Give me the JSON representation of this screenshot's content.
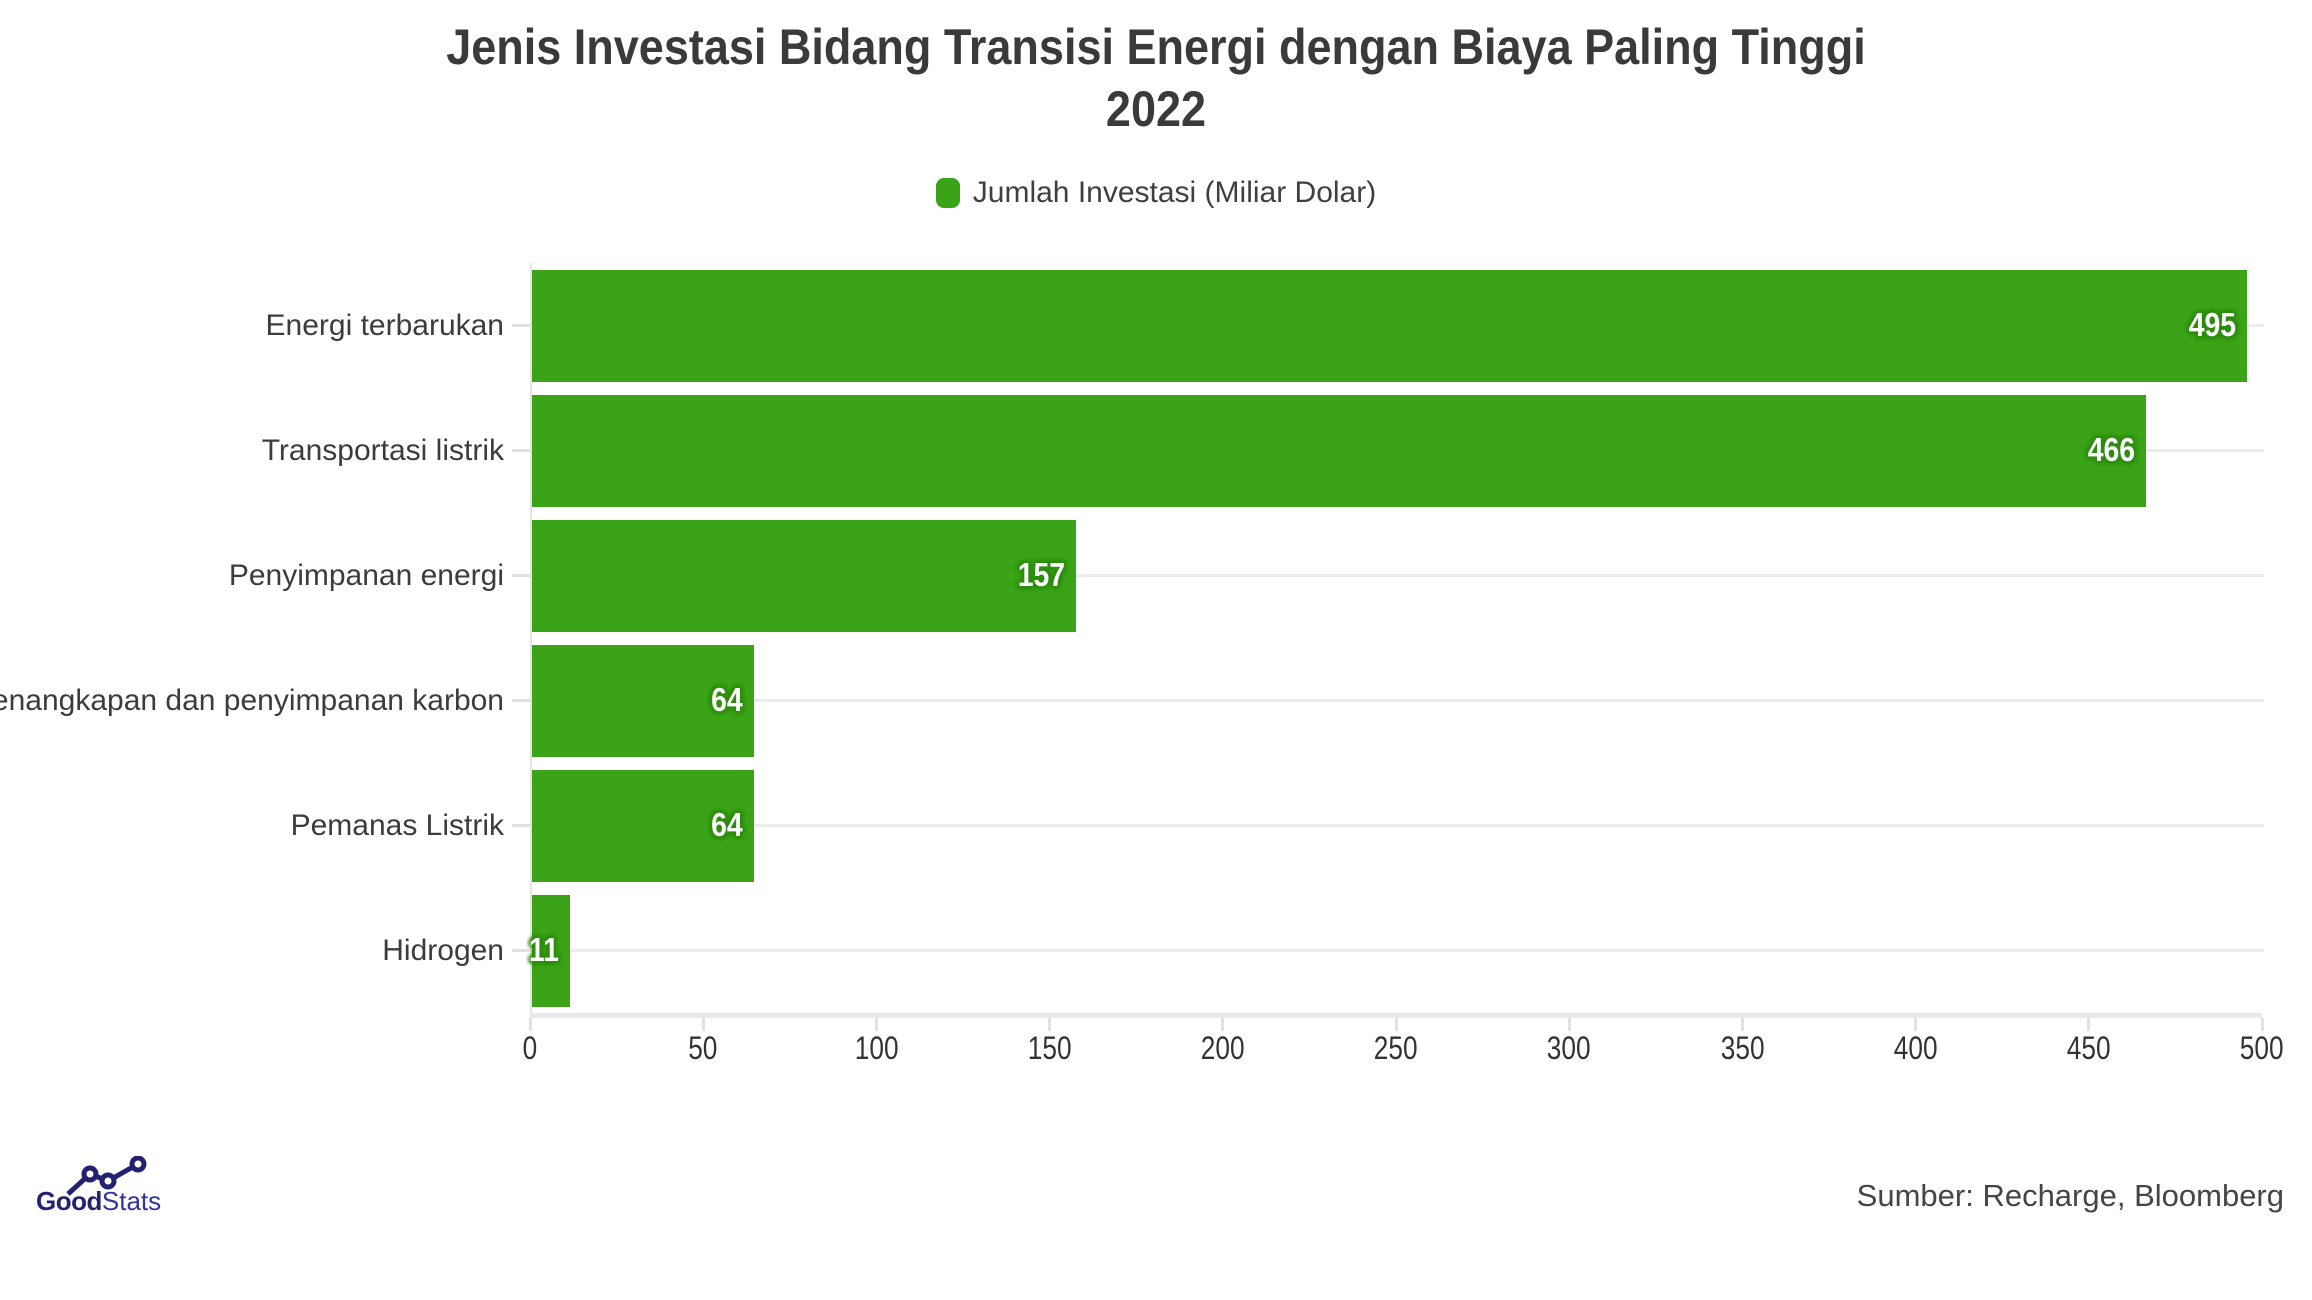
{
  "chart": {
    "title_line1": "Jenis Investasi Bidang Transisi Energi dengan Biaya Paling Tinggi",
    "title_line2": "2022",
    "legend": {
      "label": "Jumlah Investasi (Miliar Dolar)",
      "swatch_color": "#3aa317"
    }
  },
  "chart_data": {
    "type": "bar",
    "orientation": "horizontal",
    "title": "Jenis Investasi Bidang Transisi Energi dengan Biaya Paling Tinggi 2022",
    "categories": [
      "Energi terbarukan",
      "Transportasi listrik",
      "Penyimpanan energi",
      "Penangkapan dan penyimpanan karbon",
      "Pemanas Listrik",
      "Hidrogen"
    ],
    "series": [
      {
        "name": "Jumlah Investasi (Miliar Dolar)",
        "values": [
          495,
          466,
          157,
          64,
          64,
          11
        ]
      }
    ],
    "value_labels": [
      "495",
      "466",
      "157",
      "64",
      "64",
      "11"
    ],
    "xlabel": "",
    "ylabel": "",
    "xlim": [
      0,
      500
    ],
    "x_ticks": [
      0,
      50,
      100,
      150,
      200,
      250,
      300,
      350,
      400,
      450,
      500
    ],
    "grid": "horizontal line at each row center",
    "legend_position": "top-center",
    "bar_color": "#3aa317",
    "value_label_color": "#ffffff",
    "value_label_halo_color": "#2f8c10"
  },
  "footer": {
    "logo": {
      "bold": "Good",
      "light": "Stats"
    },
    "source": "Sumber: Recharge, Bloomberg"
  },
  "colors": {
    "background": "#ffffff",
    "title_text": "#3a3a3a",
    "category_text": "#3c3c3c",
    "tick_text": "#333333",
    "gridline": "#ededed",
    "axis_line": "#e9e9e9",
    "logo_navy": "#232270"
  }
}
